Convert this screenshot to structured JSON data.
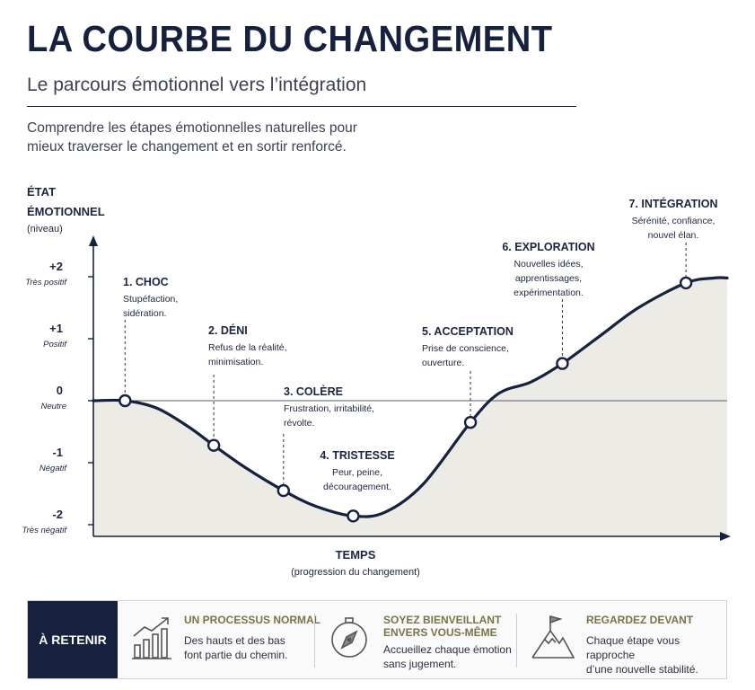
{
  "header": {
    "title": "LA COURBE DU CHANGEMENT",
    "subtitle": "Le parcours émotionnel vers l’intégration",
    "intro_line1": "Comprendre les étapes émotionnelles naturelles pour",
    "intro_line2": "mieux traverser le changement et en sortir renforcé."
  },
  "chart_data": {
    "type": "line",
    "ylabel_line1": "ÉTAT",
    "ylabel_line2": "ÉMOTIONNEL",
    "ylabel_unit": "(niveau)",
    "xlabel": "TEMPS",
    "xlabel_sub": "(progression du changement)",
    "ylim": [
      -2.2,
      2.2
    ],
    "y_ticks": [
      {
        "value": 2,
        "label": "+2",
        "sublabel": "Très positif"
      },
      {
        "value": 1,
        "label": "+1",
        "sublabel": "Positif"
      },
      {
        "value": 0,
        "label": "0",
        "sublabel": "Neutre"
      },
      {
        "value": -1,
        "label": "-1",
        "sublabel": "Négatif"
      },
      {
        "value": -2,
        "label": "-2",
        "sublabel": "Très négatif"
      }
    ],
    "stages": [
      {
        "name": "1. CHOC",
        "desc_line1": "Stupéfaction,",
        "desc_line2": "sidération.",
        "t": 0.05,
        "y": 0.0
      },
      {
        "name": "2. DÉNI",
        "desc_line1": "Refus de la réalité,",
        "desc_line2": "minimisation.",
        "t": 0.19,
        "y": -0.72
      },
      {
        "name": "3. COLÈRE",
        "desc_line1": "Frustration, irritabilité,",
        "desc_line2": "révolte.",
        "t": 0.3,
        "y": -1.45
      },
      {
        "name": "4. TRISTESSE",
        "desc_line1": "Peur, peine,",
        "desc_line2": "découragement.",
        "t": 0.41,
        "y": -1.86
      },
      {
        "name": "5. ACCEPTATION",
        "desc_line1": "Prise de conscience,",
        "desc_line2": "ouverture.",
        "t": 0.595,
        "y": -0.35
      },
      {
        "name": "6. EXPLORATION",
        "desc_line1": "Nouvelles idées,",
        "desc_line2": "apprentissages,",
        "desc_line3": "expérimentation.",
        "t": 0.74,
        "y": 0.6
      },
      {
        "name": "7. INTÉGRATION",
        "desc_line1": "Sérénité, confiance,",
        "desc_line2": "nouvel élan.",
        "t": 0.935,
        "y": 1.9
      }
    ],
    "curve": [
      [
        0.0,
        0.0
      ],
      [
        0.05,
        0.0
      ],
      [
        0.1,
        -0.12
      ],
      [
        0.15,
        -0.42
      ],
      [
        0.19,
        -0.72
      ],
      [
        0.24,
        -1.08
      ],
      [
        0.3,
        -1.45
      ],
      [
        0.35,
        -1.7
      ],
      [
        0.41,
        -1.86
      ],
      [
        0.46,
        -1.8
      ],
      [
        0.52,
        -1.35
      ],
      [
        0.595,
        -0.35
      ],
      [
        0.64,
        0.12
      ],
      [
        0.69,
        0.3
      ],
      [
        0.74,
        0.6
      ],
      [
        0.8,
        1.05
      ],
      [
        0.86,
        1.5
      ],
      [
        0.935,
        1.9
      ],
      [
        0.98,
        1.98
      ],
      [
        1.0,
        1.98
      ]
    ],
    "colors": {
      "curve": "#16213e",
      "fill": "#ecebe6",
      "accent": "#7a7347"
    }
  },
  "retain": {
    "label": "À RETENIR",
    "items": [
      {
        "icon": "growth-chart-icon",
        "title": "UN PROCESSUS NORMAL",
        "text_line1": "Des hauts et des bas",
        "text_line2": "font partie du chemin."
      },
      {
        "icon": "compass-icon",
        "title_line1": "SOYEZ BIENVEILLANT",
        "title_line2": "ENVERS VOUS-MÊME",
        "text_line1": "Accueillez chaque émotion",
        "text_line2": "sans jugement."
      },
      {
        "icon": "mountain-flag-icon",
        "title": "REGARDEZ DEVANT",
        "text_line1": "Chaque étape vous rapproche",
        "text_line2": "d’une nouvelle stabilité."
      }
    ]
  }
}
